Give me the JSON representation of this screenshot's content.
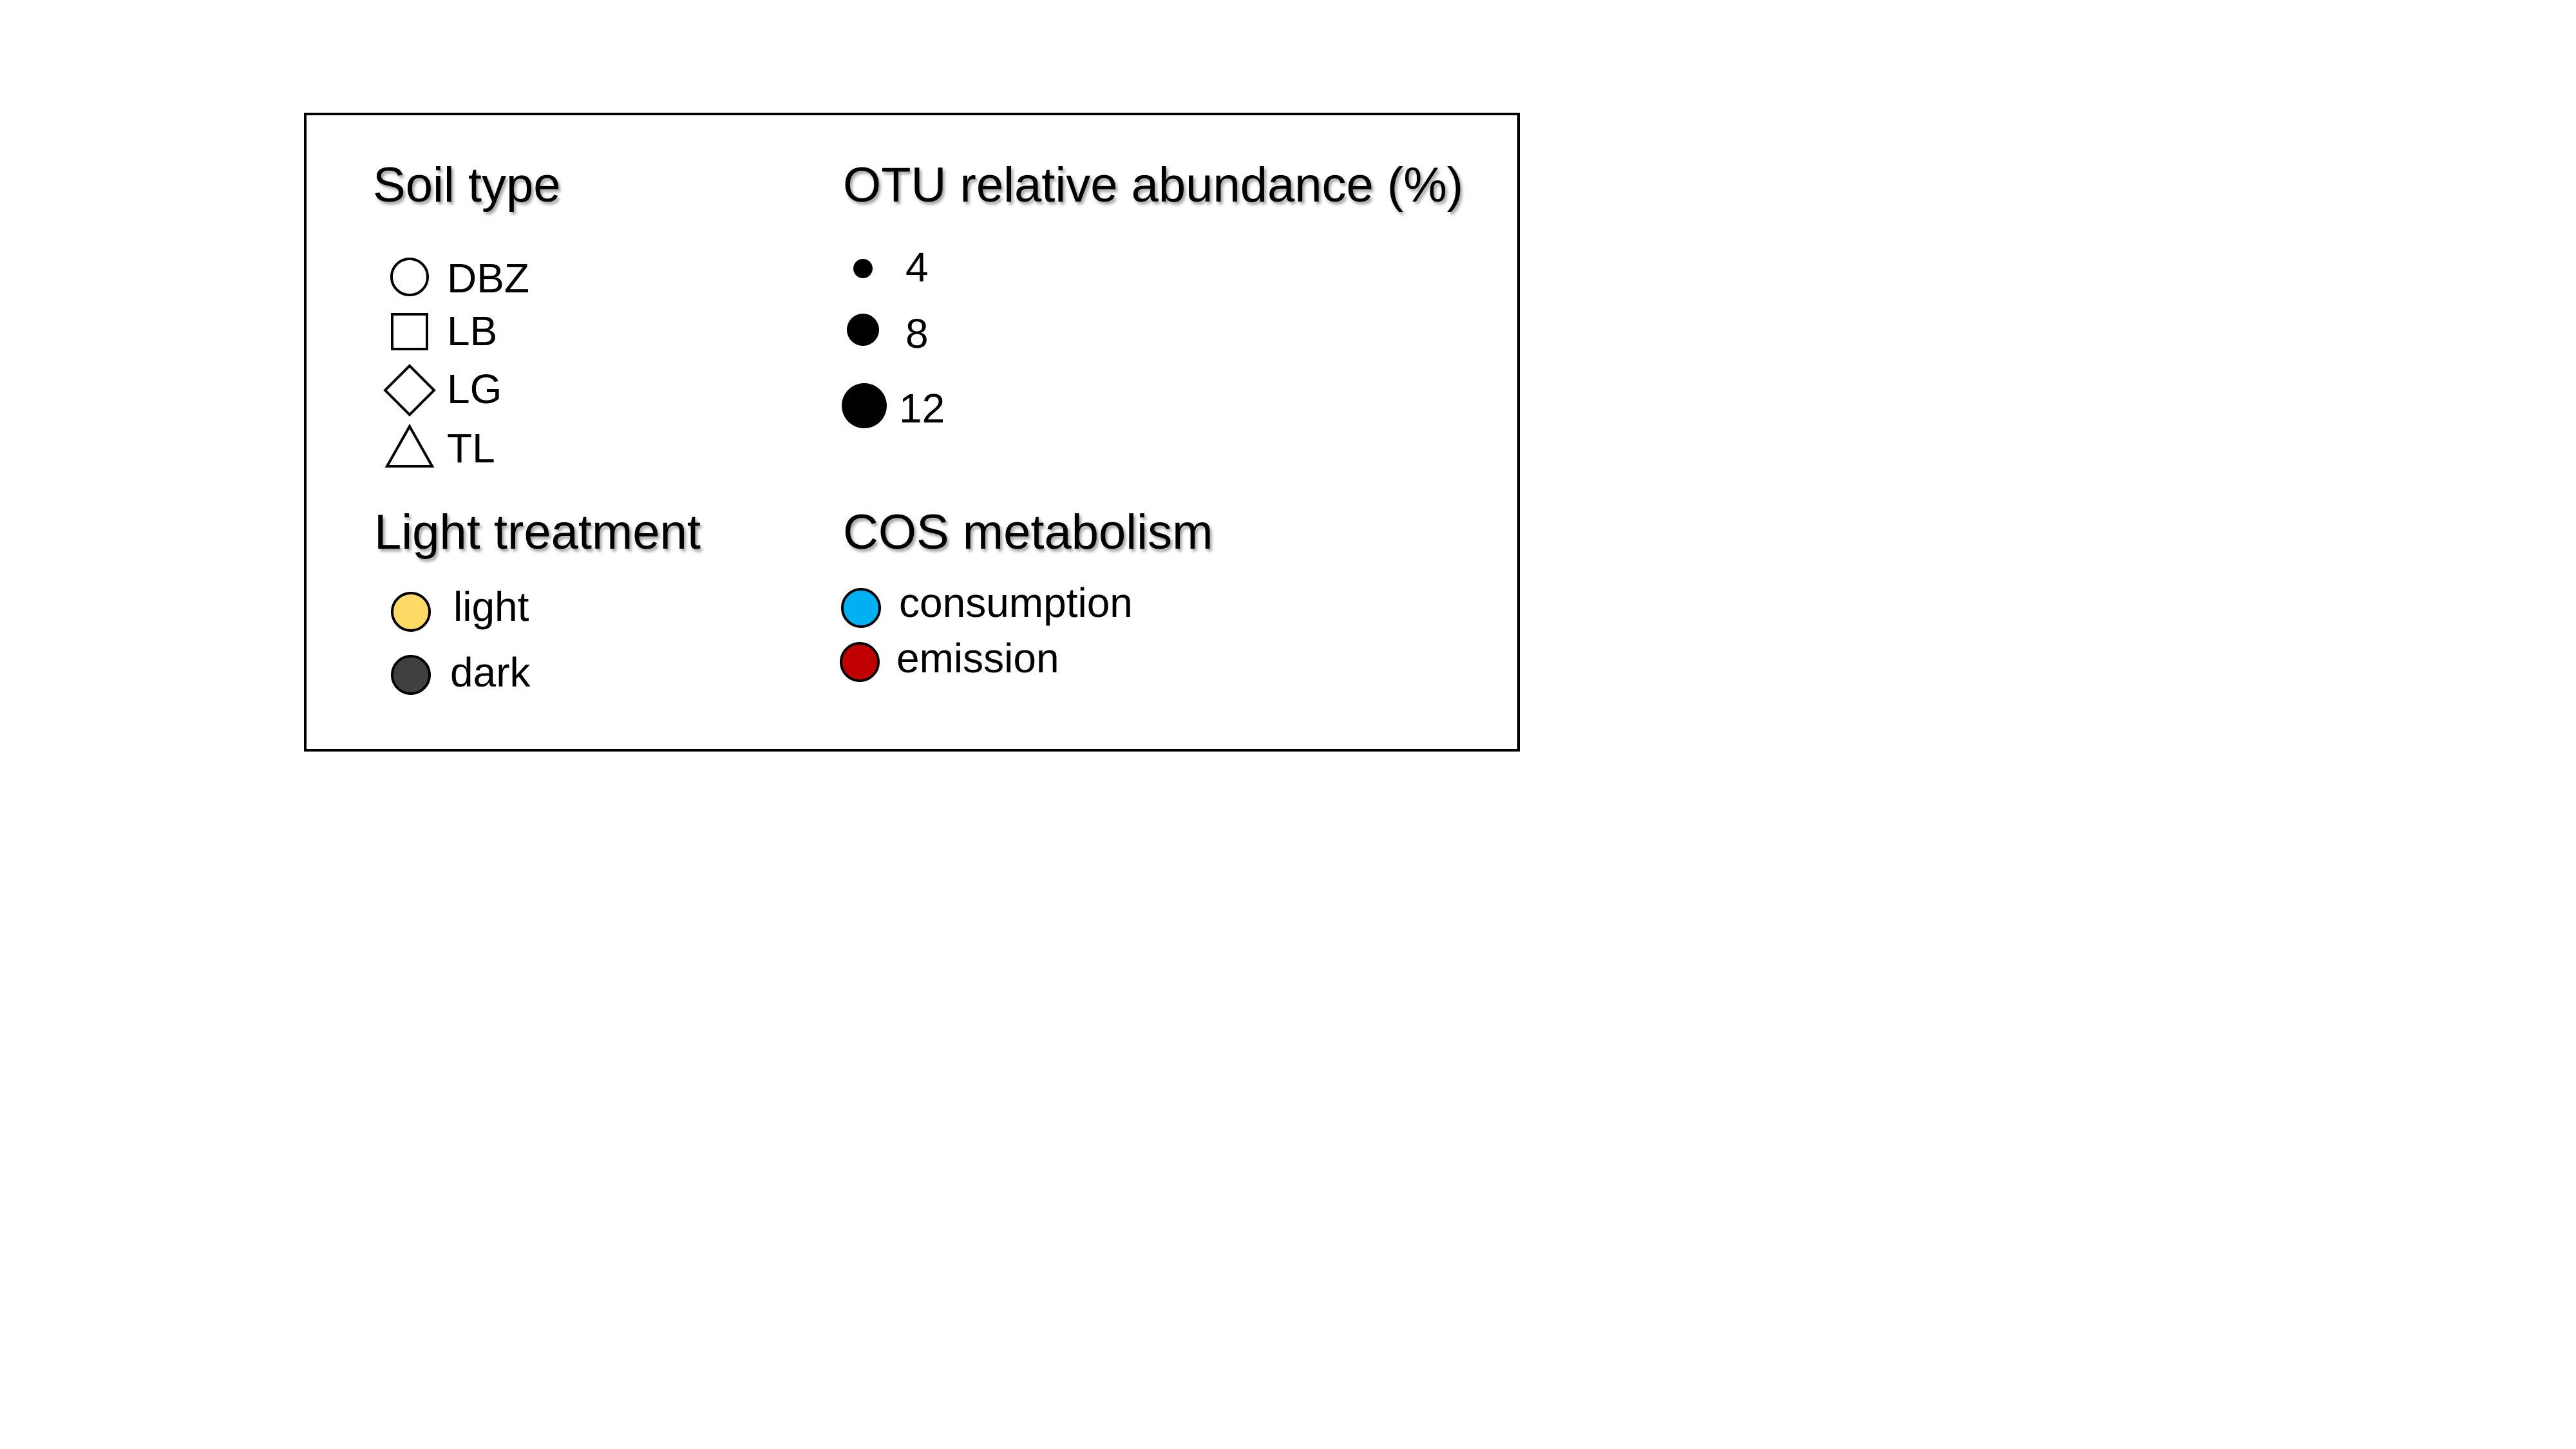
{
  "legend": {
    "soil_type": {
      "title": "Soil type",
      "items": [
        {
          "label": "DBZ",
          "icon": "circle-outline-icon"
        },
        {
          "label": "LB",
          "icon": "square-outline-icon"
        },
        {
          "label": "LG",
          "icon": "diamond-outline-icon"
        },
        {
          "label": "TL",
          "icon": "triangle-outline-icon"
        }
      ]
    },
    "otu_abundance": {
      "title": "OTU relative abundance (%)",
      "items": [
        {
          "label": "4"
        },
        {
          "label": "8"
        },
        {
          "label": "12"
        }
      ]
    },
    "light_treatment": {
      "title": "Light treatment",
      "items": [
        {
          "label": "light",
          "color": "#FFD966"
        },
        {
          "label": "dark",
          "color": "#404040"
        }
      ]
    },
    "cos_metabolism": {
      "title": "COS metabolism",
      "items": [
        {
          "label": "consumption",
          "color": "#00B0F0"
        },
        {
          "label": "emission",
          "color": "#C00000"
        }
      ]
    }
  }
}
